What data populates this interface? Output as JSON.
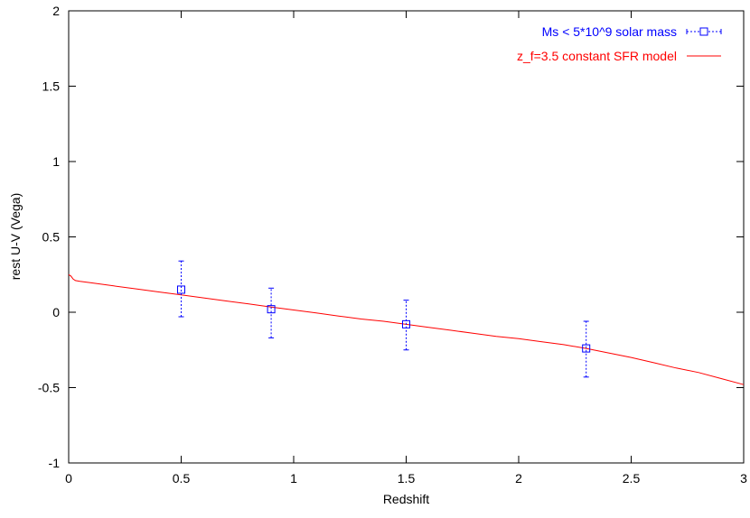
{
  "chart_data": {
    "type": "scatter",
    "title": "",
    "xlabel": "Redshift",
    "ylabel": "rest U-V (Vega)",
    "xlim": [
      0,
      3
    ],
    "ylim": [
      -1,
      2
    ],
    "x_ticks": [
      0,
      0.5,
      1,
      1.5,
      2,
      2.5,
      3
    ],
    "x_tick_labels": [
      "0",
      "0.5",
      "1",
      "1.5",
      "2",
      "2.5",
      "3"
    ],
    "y_ticks": [
      -1,
      -0.5,
      0,
      0.5,
      1,
      1.5,
      2
    ],
    "y_tick_labels": [
      "-1",
      "-0.5",
      "0",
      "0.5",
      "1",
      "1.5",
      "2"
    ],
    "grid": false,
    "legend_position": "top-right",
    "series": [
      {
        "name": "Ms < 5*10^9 solar mass",
        "kind": "errorbar-points",
        "color": "#0000ff",
        "points": [
          {
            "x": 0.5,
            "y": 0.15,
            "ylow": -0.03,
            "yhigh": 0.34
          },
          {
            "x": 0.9,
            "y": 0.02,
            "ylow": -0.17,
            "yhigh": 0.16
          },
          {
            "x": 1.5,
            "y": -0.08,
            "ylow": -0.25,
            "yhigh": 0.08
          },
          {
            "x": 2.3,
            "y": -0.24,
            "ylow": -0.43,
            "yhigh": -0.06
          }
        ]
      },
      {
        "name": "z_f=3.5 constant SFR model",
        "kind": "line",
        "color": "#ff0000",
        "x": [
          0.0,
          0.01,
          0.02,
          0.03,
          0.05,
          0.1,
          0.2,
          0.3,
          0.4,
          0.5,
          0.6,
          0.7,
          0.8,
          0.9,
          1.0,
          1.1,
          1.2,
          1.3,
          1.4,
          1.5,
          1.6,
          1.7,
          1.8,
          1.9,
          2.0,
          2.1,
          2.2,
          2.3,
          2.4,
          2.5,
          2.6,
          2.7,
          2.8,
          2.9,
          3.0
        ],
        "y": [
          0.25,
          0.24,
          0.22,
          0.21,
          0.205,
          0.195,
          0.175,
          0.155,
          0.135,
          0.115,
          0.095,
          0.075,
          0.055,
          0.035,
          0.015,
          -0.005,
          -0.025,
          -0.045,
          -0.06,
          -0.08,
          -0.1,
          -0.12,
          -0.14,
          -0.16,
          -0.175,
          -0.195,
          -0.215,
          -0.24,
          -0.27,
          -0.3,
          -0.335,
          -0.37,
          -0.4,
          -0.44,
          -0.48
        ]
      }
    ]
  }
}
